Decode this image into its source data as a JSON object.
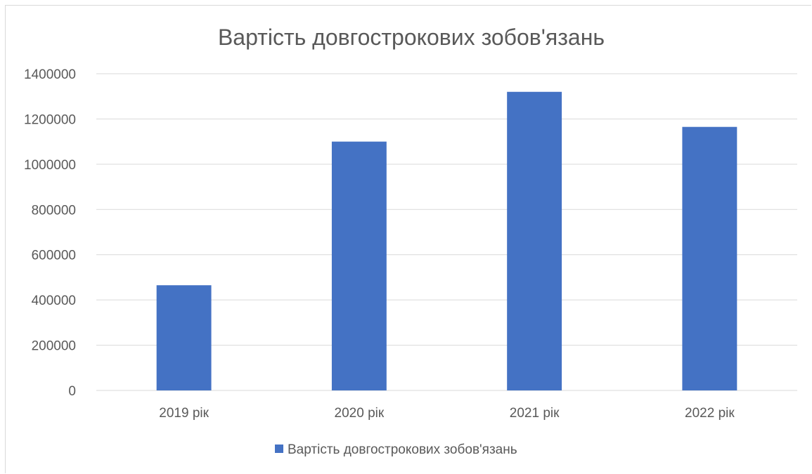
{
  "chart_data": {
    "type": "bar",
    "title": "Вартість довгострокових зобов'язань",
    "categories": [
      "2019 рік",
      "2020 рік",
      "2021 рік",
      "2022 рік"
    ],
    "series": [
      {
        "name": "Вартість довгострокових зобов'язань",
        "values": [
          465000,
          1100000,
          1320000,
          1165000
        ],
        "color": "#4472C4"
      }
    ],
    "ylim": [
      0,
      1400000
    ],
    "yticks": [
      0,
      200000,
      400000,
      600000,
      800000,
      1000000,
      1200000,
      1400000
    ],
    "grid": true,
    "legend_position": "bottom"
  }
}
